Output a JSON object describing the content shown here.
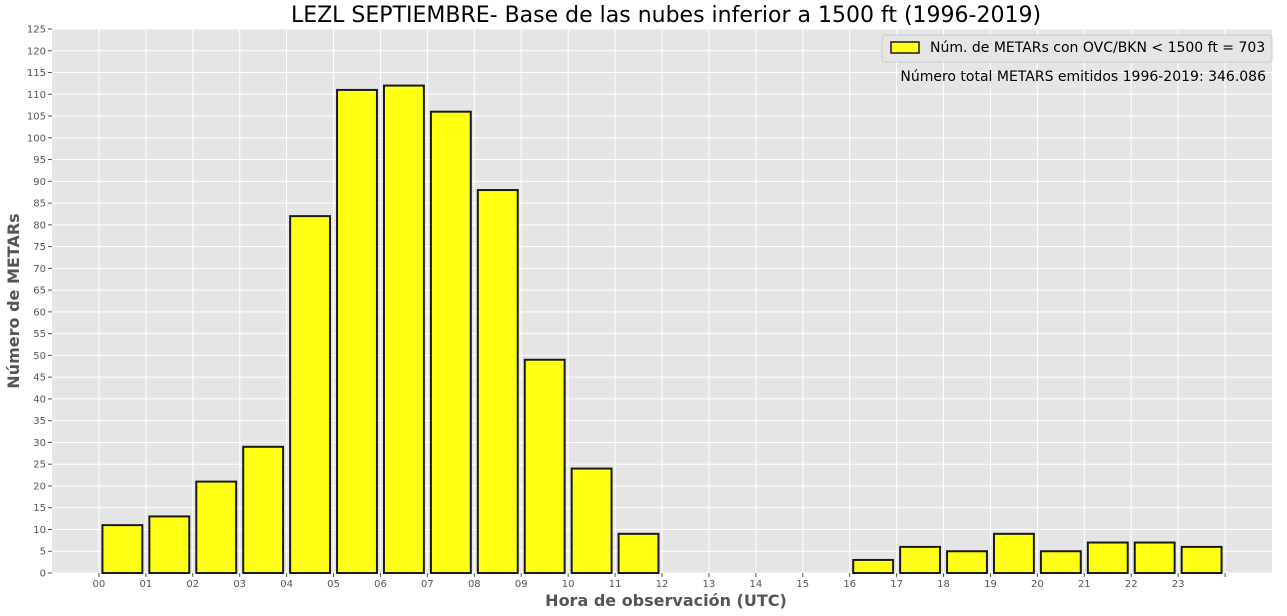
{
  "chart_data": {
    "type": "bar",
    "title": "LEZL SEPTIEMBRE- Base de las nubes inferior a 1500 ft (1996-2019)",
    "xlabel": "Hora de observación (UTC)",
    "ylabel": "Número de METARs",
    "categories": [
      "00",
      "01",
      "02",
      "03",
      "04",
      "05",
      "06",
      "07",
      "08",
      "09",
      "10",
      "11",
      "12",
      "13",
      "14",
      "15",
      "16",
      "17",
      "18",
      "19",
      "20",
      "21",
      "22",
      "23"
    ],
    "series": [
      {
        "name": "Núm. de METARs con OVC/BKN < 1500 ft = 703",
        "values": [
          11,
          13,
          21,
          29,
          82,
          111,
          112,
          106,
          88,
          49,
          24,
          9,
          0,
          0,
          0,
          0,
          3,
          6,
          5,
          9,
          5,
          7,
          7,
          6
        ]
      }
    ],
    "annotation": "Número total METARS emitidos 1996-2019: 346.086",
    "ylim": [
      0,
      125
    ],
    "ytick_step": 5,
    "grid": true,
    "legend_position": "top-right",
    "colors": {
      "bar_fill": "#ffff14",
      "bar_edge": "#1a1a1a",
      "plot_background": "#e5e5e5",
      "grid": "#ffffff"
    }
  }
}
